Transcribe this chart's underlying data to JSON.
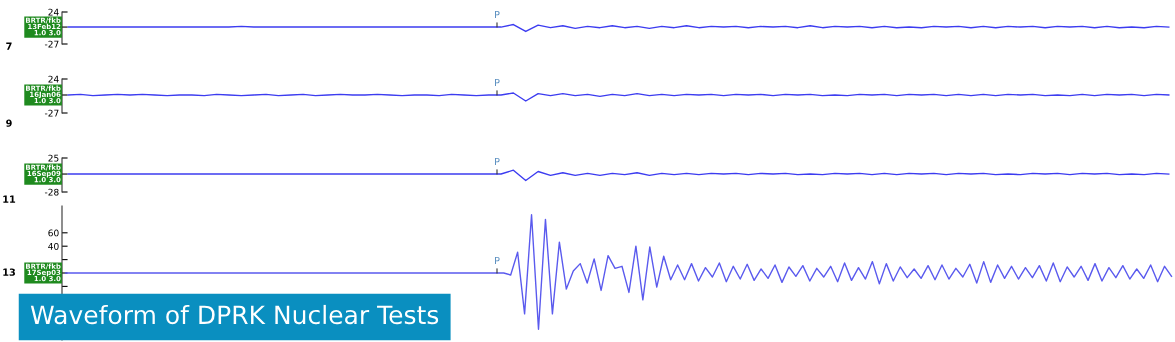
{
  "chart_data": [
    {
      "type": "line",
      "tick_labels": "y",
      "ylim": [
        -27,
        24
      ],
      "yticks": [
        24,
        {
          "value": 0,
          "label": null
        },
        -27
      ],
      "annotations": [
        "P",
        "7"
      ],
      "categories": [
        null,
        null,
        null,
        null,
        null,
        null,
        null,
        null,
        null,
        null,
        null,
        null,
        null,
        null,
        null,
        null,
        null,
        null,
        null,
        null,
        null,
        null,
        null,
        null,
        null,
        null,
        null,
        null,
        null,
        null,
        null,
        null,
        null,
        null,
        null,
        null,
        null,
        null,
        null,
        null,
        null,
        null,
        null,
        null,
        null,
        null,
        null,
        null,
        null,
        null,
        null,
        null,
        null,
        null,
        null,
        null,
        null,
        null,
        null,
        null,
        null,
        null,
        null,
        null,
        null,
        null,
        null,
        null,
        null,
        null,
        null,
        null,
        null,
        null,
        null,
        null,
        null,
        null,
        null,
        null,
        null,
        null,
        null,
        null,
        null,
        null,
        null,
        null,
        null,
        null
      ],
      "series": [
        {
          "name": "BRTR/fkb\n13Feb12\n1.0 3.0",
          "color": "#3c3cf0",
          "values": [
            0,
            0,
            0,
            0,
            0,
            0,
            0,
            0,
            0,
            0,
            0,
            0,
            0,
            0,
            1,
            0,
            0,
            0,
            0,
            0,
            0,
            0,
            0,
            0,
            0,
            0,
            0,
            0,
            0,
            0,
            0,
            0,
            0,
            0,
            0,
            0,
            4,
            -7,
            3,
            -1,
            2,
            -2,
            1,
            -1,
            2,
            -1,
            1,
            -2,
            1,
            -1,
            2,
            -1,
            1,
            0,
            1,
            -1,
            1,
            0,
            1,
            -1,
            2,
            -1,
            1,
            0,
            1,
            -1,
            1,
            -1,
            0,
            -1,
            1,
            0,
            1,
            -1,
            1,
            -1,
            1,
            0,
            1,
            -1,
            1,
            0,
            1,
            -1,
            1,
            -1,
            0,
            -1,
            1,
            0
          ]
        }
      ]
    },
    {
      "type": "line",
      "tick_labels": "y",
      "ylim": [
        -27,
        24
      ],
      "yticks": [
        24,
        {
          "value": 0,
          "label": null
        },
        -27
      ],
      "annotations": [
        "P",
        "9"
      ],
      "categories": [
        null,
        null,
        null,
        null,
        null,
        null,
        null,
        null,
        null,
        null,
        null,
        null,
        null,
        null,
        null,
        null,
        null,
        null,
        null,
        null,
        null,
        null,
        null,
        null,
        null,
        null,
        null,
        null,
        null,
        null,
        null,
        null,
        null,
        null,
        null,
        null,
        null,
        null,
        null,
        null,
        null,
        null,
        null,
        null,
        null,
        null,
        null,
        null,
        null,
        null,
        null,
        null,
        null,
        null,
        null,
        null,
        null,
        null,
        null,
        null,
        null,
        null,
        null,
        null,
        null,
        null,
        null,
        null,
        null,
        null,
        null,
        null,
        null,
        null,
        null,
        null,
        null,
        null,
        null,
        null,
        null,
        null,
        null,
        null,
        null,
        null,
        null,
        null,
        null,
        null
      ],
      "series": [
        {
          "name": "BRTR/fkb\n16Jan06\n1.0 3.0",
          "color": "#3c3cf0",
          "values": [
            0,
            1,
            -1,
            0,
            1,
            0,
            1,
            0,
            -1,
            0,
            0,
            -1,
            1,
            0,
            -1,
            0,
            1,
            -1,
            0,
            1,
            -1,
            0,
            1,
            0,
            0,
            1,
            0,
            -1,
            0,
            0,
            -1,
            1,
            0,
            -1,
            0,
            0,
            3,
            -9,
            2,
            -1,
            2,
            -1,
            1,
            -2,
            1,
            -1,
            2,
            -1,
            1,
            -1,
            1,
            0,
            1,
            -1,
            1,
            0,
            1,
            -1,
            1,
            0,
            1,
            -1,
            0,
            -1,
            1,
            0,
            1,
            -1,
            1,
            0,
            1,
            -1,
            1,
            -1,
            1,
            -1,
            1,
            0,
            1,
            -1,
            0,
            -1,
            1,
            -1,
            1,
            0,
            1,
            -1,
            1,
            0
          ]
        }
      ]
    },
    {
      "type": "line",
      "tick_labels": "y",
      "ylim": [
        -28,
        25
      ],
      "yticks": [
        25,
        {
          "value": 0,
          "label": null
        },
        -28
      ],
      "annotations": [
        "P",
        "11"
      ],
      "categories": [
        null,
        null,
        null,
        null,
        null,
        null,
        null,
        null,
        null,
        null,
        null,
        null,
        null,
        null,
        null,
        null,
        null,
        null,
        null,
        null,
        null,
        null,
        null,
        null,
        null,
        null,
        null,
        null,
        null,
        null,
        null,
        null,
        null,
        null,
        null,
        null,
        null,
        null,
        null,
        null,
        null,
        null,
        null,
        null,
        null,
        null,
        null,
        null,
        null,
        null,
        null,
        null,
        null,
        null,
        null,
        null,
        null,
        null,
        null,
        null,
        null,
        null,
        null,
        null,
        null,
        null,
        null,
        null,
        null,
        null,
        null,
        null,
        null,
        null,
        null,
        null,
        null,
        null,
        null,
        null,
        null,
        null,
        null,
        null,
        null,
        null,
        null,
        null,
        null,
        null
      ],
      "series": [
        {
          "name": "BRTR/fkb\n16Sep09\n1.0 3.0",
          "color": "#3c3cf0",
          "values": [
            0,
            0,
            0,
            0,
            0,
            0,
            0,
            0,
            0,
            0,
            0,
            0,
            0,
            0,
            0,
            0,
            0,
            0,
            0,
            0,
            0,
            0,
            0,
            0,
            0,
            0,
            0,
            0,
            0,
            0,
            0,
            0,
            0,
            0,
            0,
            0,
            6,
            -10,
            4,
            -2,
            2,
            -2,
            1,
            -2,
            1,
            -1,
            2,
            -2,
            1,
            -1,
            1,
            -1,
            1,
            0,
            1,
            -1,
            1,
            0,
            1,
            -1,
            0,
            -1,
            1,
            0,
            1,
            -1,
            1,
            -1,
            1,
            0,
            1,
            -1,
            1,
            0,
            1,
            -1,
            0,
            -1,
            1,
            0,
            1,
            -1,
            1,
            0,
            1,
            -1,
            0,
            -1,
            1,
            0
          ]
        }
      ]
    },
    {
      "type": "line",
      "tick_labels": "y",
      "ylim": [
        -100,
        100
      ],
      "yticks": [
        60,
        40,
        {
          "value": 20,
          "label": null
        },
        {
          "value": 0,
          "label": null
        },
        {
          "value": -20,
          "label": null
        }
      ],
      "annotations": [
        "P",
        "13"
      ],
      "title": "Waveform of DPRK Nuclear Tests",
      "categories": [
        null,
        null,
        null,
        null,
        null,
        null,
        null,
        null,
        null,
        null,
        null,
        null,
        null,
        null,
        null,
        null,
        null,
        null,
        null,
        null,
        null,
        null,
        null,
        null,
        null,
        null,
        null,
        null,
        null,
        null,
        null,
        null,
        null,
        null,
        null,
        null,
        null,
        null,
        null,
        null,
        null,
        null,
        null,
        null,
        null,
        null,
        null,
        null,
        null,
        null,
        null,
        null,
        null,
        null,
        null,
        null,
        null,
        null,
        null,
        null,
        null,
        null,
        null,
        null,
        null,
        null,
        null,
        null,
        null,
        null,
        null,
        null,
        null,
        null,
        null,
        null,
        null,
        null,
        null,
        null,
        null,
        null,
        null,
        null,
        null,
        null,
        null,
        null,
        null,
        null,
        null,
        null,
        null,
        null,
        null,
        null,
        null,
        null,
        null,
        null,
        null,
        null,
        null,
        null,
        null,
        null,
        null,
        null,
        null,
        null,
        null,
        null,
        null,
        null,
        null,
        null,
        null,
        null,
        null,
        null,
        null,
        null,
        null,
        null,
        null,
        null,
        null,
        null,
        null,
        null,
        null,
        null,
        null,
        null,
        null,
        null,
        null,
        null,
        null,
        null,
        null,
        null,
        null,
        null,
        null,
        null,
        null,
        null,
        null,
        null,
        null,
        null,
        null,
        null,
        null,
        null,
        null,
        null,
        null,
        null
      ],
      "series": [
        {
          "name": "BRTR/fkb\n17Sep03\n1.0 3.0",
          "color": "#5a5aee",
          "values": [
            0,
            0,
            0,
            0,
            0,
            0,
            0,
            0,
            0,
            0,
            0,
            0,
            0,
            0,
            0,
            0,
            0,
            0,
            0,
            0,
            0,
            0,
            0,
            0,
            0,
            0,
            0,
            0,
            0,
            0,
            0,
            0,
            0,
            0,
            0,
            0,
            0,
            0,
            0,
            0,
            0,
            0,
            0,
            0,
            0,
            0,
            0,
            0,
            0,
            0,
            0,
            0,
            0,
            0,
            0,
            0,
            0,
            0,
            0,
            0,
            0,
            0,
            0,
            0,
            -3,
            31,
            -61,
            87,
            -84,
            80,
            -61,
            46,
            -24,
            3,
            14,
            -15,
            21,
            -26,
            26,
            7,
            10,
            -29,
            40,
            -40,
            39,
            -21,
            25,
            -10,
            12,
            -10,
            14,
            -12,
            8,
            -6,
            15,
            -13,
            10,
            -9,
            13,
            -11,
            6,
            -8,
            12,
            -14,
            9,
            -5,
            11,
            -12,
            7,
            -6,
            10,
            -13,
            15,
            -11,
            8,
            -9,
            17,
            -16,
            14,
            -12,
            9,
            -7,
            6,
            -8,
            11,
            -10,
            12,
            -9,
            7,
            -6,
            13,
            -15,
            17,
            -14,
            12,
            -8,
            10,
            -9,
            8,
            -7,
            11,
            -12,
            15,
            -13,
            9,
            -6,
            10,
            -11,
            14,
            -12,
            8,
            -7,
            11,
            -9,
            6,
            -8,
            12,
            -13,
            10,
            -5
          ]
        }
      ]
    }
  ]
}
